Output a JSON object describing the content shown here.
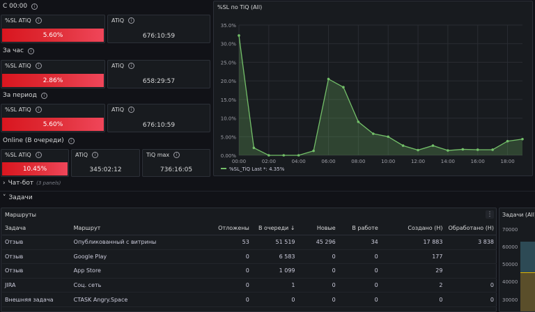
{
  "rows": {
    "r0": "С 00:00",
    "r1": "За час",
    "r2": "За период",
    "r3": "Online (В очереди)"
  },
  "stats": {
    "r0": {
      "sl_title": "%SL ATiQ",
      "sl_value": "5.60%",
      "atiq_title": "ATiQ",
      "atiq_value": "676:10:59"
    },
    "r1": {
      "sl_title": "%SL ATiQ",
      "sl_value": "2.86%",
      "atiq_title": "ATiQ",
      "atiq_value": "658:29:57"
    },
    "r2": {
      "sl_title": "%SL ATiQ",
      "sl_value": "5.60%",
      "atiq_title": "ATiQ",
      "atiq_value": "676:10:59"
    },
    "r3": {
      "sl_title": "%SL ATiQ",
      "sl_value": "10.45%",
      "atiq_title": "ATiQ",
      "atiq_value": "345:02:12",
      "max_title": "TiQ max",
      "max_value": "736:16:05"
    }
  },
  "chart_data": {
    "type": "area",
    "title": "%SL по TiQ (All)",
    "series": [
      {
        "name": "%SL_TiQ",
        "values": [
          32.2,
          2.0,
          0.0,
          0.0,
          0.0,
          1.2,
          20.5,
          18.3,
          9.0,
          5.8,
          5.0,
          2.6,
          1.4,
          2.6,
          1.3,
          1.6,
          1.5,
          1.5,
          3.8,
          4.35
        ]
      }
    ],
    "x": [
      0,
      1,
      2,
      3,
      4,
      5,
      6,
      7,
      8,
      9,
      10,
      11,
      12,
      13,
      14,
      15,
      16,
      17,
      18,
      19
    ],
    "x_ticks": [
      "00:00",
      "02:00",
      "04:00",
      "06:00",
      "08:00",
      "10:00",
      "12:00",
      "14:00",
      "16:00",
      "18:00"
    ],
    "y_ticks": [
      "0.00%",
      "5.00%",
      "10.0%",
      "15.0%",
      "20.0%",
      "25.0%",
      "30.0%",
      "35.0%"
    ],
    "ylim": [
      0,
      35
    ],
    "xlim": [
      0,
      19
    ],
    "legend": "%SL_TiQ   Last *: 4.35%",
    "line_color": "#73bf69",
    "legend_position": "bottom-left"
  },
  "sections": {
    "chatbot": {
      "label": "Чат-бот",
      "meta": "(3 panels)",
      "arrow": "›"
    },
    "tasks": {
      "label": "Задачи",
      "arrow": "˅"
    }
  },
  "routes": {
    "title": "Маршруты",
    "menu": "⋮",
    "columns": [
      "Задача",
      "Маршрут",
      "Отложены",
      "В очереди ↓",
      "Новые",
      "В работе",
      "Создано (H)",
      "Обработано (H)"
    ],
    "rows": [
      [
        "Отзыв",
        "Опубликованный с витрины",
        "53",
        "51 519",
        "45 296",
        "34",
        "17 883",
        "3 838"
      ],
      [
        "Отзыв",
        "Google Play",
        "0",
        "6 583",
        "0",
        "0",
        "177",
        ""
      ],
      [
        "Отзыв",
        "App Store",
        "0",
        "1 099",
        "0",
        "0",
        "29",
        ""
      ],
      [
        "JIRA",
        "Соц. сеть",
        "0",
        "1",
        "0",
        "0",
        "2",
        "0"
      ],
      [
        "Внешняя задача",
        "CTASK Angry.Space",
        "0",
        "0",
        "0",
        "0",
        "0",
        "0"
      ]
    ]
  },
  "tasks_panel": {
    "title": "Задачи (All)",
    "y_ticks": [
      "70000",
      "60000",
      "50000",
      "40000",
      "30000"
    ]
  },
  "colors": {
    "accent_red": "#e02f44",
    "green": "#73bf69",
    "bg": "#111217",
    "panel": "#181b1f"
  }
}
